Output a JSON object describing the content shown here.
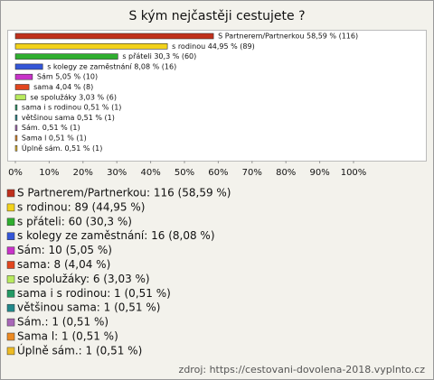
{
  "chart_data": {
    "type": "barh",
    "title": "S kým nejčastěji cestujete ?",
    "values": [
      58.59,
      44.95,
      30.3,
      8.08,
      5.05,
      4.04,
      3.03,
      0.51,
      0.51,
      0.51,
      0.51,
      0.51
    ],
    "value_labels": [
      "S Partnerem/Partnerkou 58,59 % (116)",
      "s rodinou 44,95 % (89)",
      "s přáteli 30,3 % (60)",
      "s kolegy ze zaměstnání 8,08 % (16)",
      "Sám 5,05 % (10)",
      "sama 4,04 % (8)",
      "se spolužáky 3,03 % (6)",
      "sama i s rodinou 0,51 % (1)",
      "většinou sama 0,51 % (1)",
      "Sám. 0,51 % (1)",
      "Sama l 0,51 % (1)",
      "Úplně sám. 0,51 % (1)"
    ],
    "legend": [
      "S Partnerem/Partnerkou: 116 (58,59 %)",
      "s rodinou: 89 (44,95 %)",
      "s přáteli: 60 (30,3 %)",
      "s kolegy ze zaměstnání: 16 (8,08 %)",
      "Sám: 10 (5,05 %)",
      "sama: 8 (4,04 %)",
      "se spolužáky: 6 (3,03 %)",
      "sama i s rodinou: 1 (0,51 %)",
      "většinou sama: 1 (0,51 %)",
      "Sám.: 1 (0,51 %)",
      "Sama l: 1 (0,51 %)",
      "Úplně sám.: 1 (0,51 %)"
    ],
    "colors": [
      "#c0301c",
      "#f2d21a",
      "#2fae2f",
      "#3456d8",
      "#c932c9",
      "#e2461e",
      "#b8ea5e",
      "#239a64",
      "#22888a",
      "#a867b8",
      "#ec8a22",
      "#edbb24"
    ],
    "xlim": [
      0,
      100
    ],
    "xticks": [
      {
        "value": 0,
        "label": "0%"
      },
      {
        "value": 10,
        "label": "10%"
      },
      {
        "value": 20,
        "label": "20%"
      },
      {
        "value": 30,
        "label": "30%"
      },
      {
        "value": 40,
        "label": "40%"
      },
      {
        "value": 50,
        "label": "50%"
      },
      {
        "value": 60,
        "label": "60%"
      },
      {
        "value": 70,
        "label": "70%"
      },
      {
        "value": 80,
        "label": "80%"
      },
      {
        "value": 90,
        "label": "90%"
      },
      {
        "value": 100,
        "label": "100%"
      }
    ],
    "source": "zdroj: https://cestovani-dovolena-2018.vyplnto.cz"
  }
}
